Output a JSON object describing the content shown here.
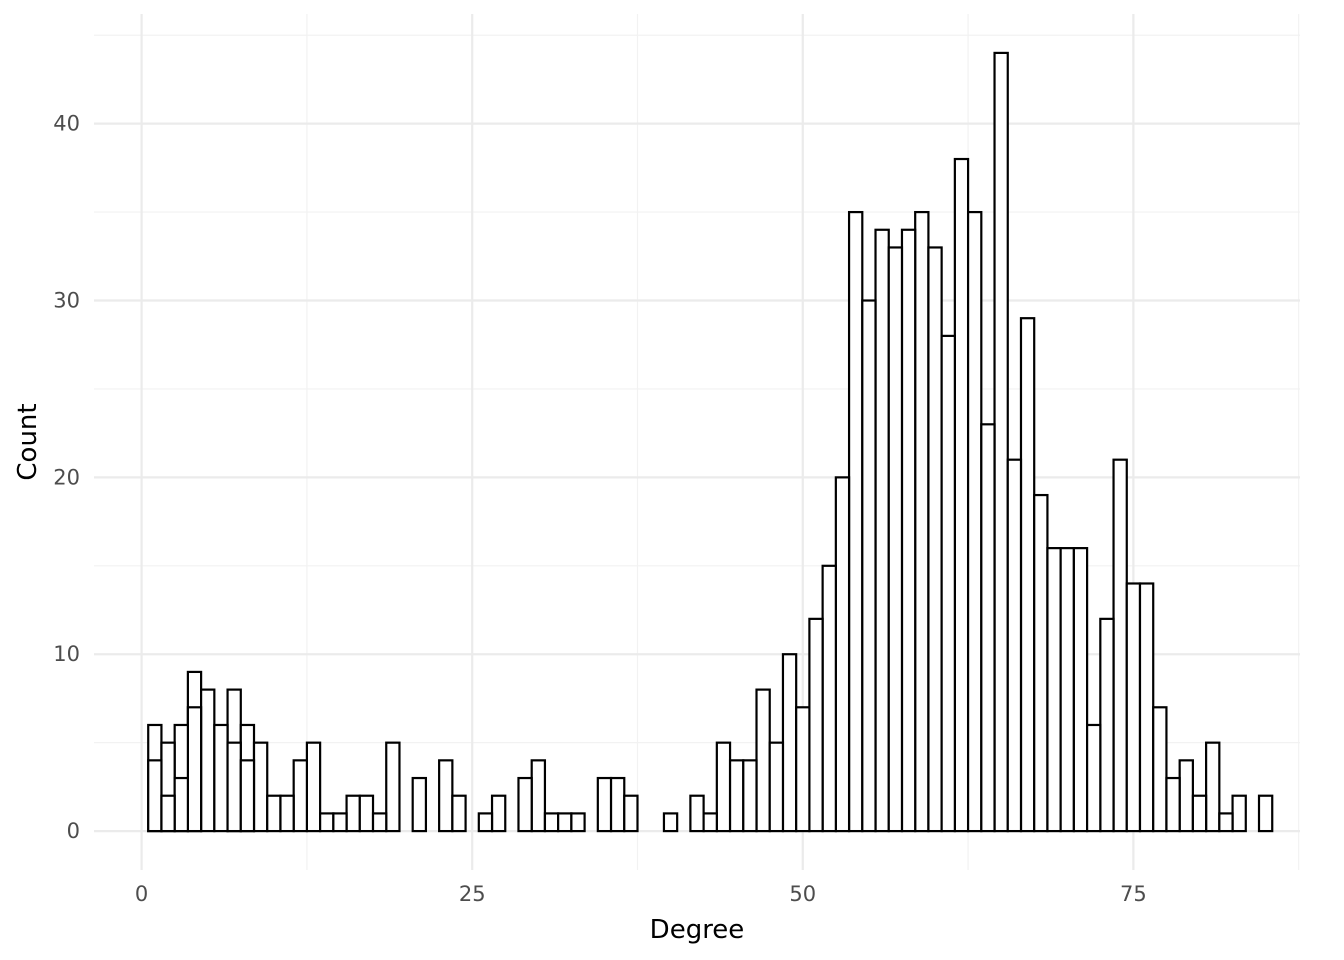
{
  "chart_data": {
    "type": "bar",
    "xlabel": "Degree",
    "ylabel": "Count",
    "xlim": [
      -3.6,
      87.6
    ],
    "ylim": [
      -2.2,
      46.2
    ],
    "x_ticks": [
      0,
      25,
      50,
      75
    ],
    "y_ticks": [
      0,
      10,
      20,
      30,
      40
    ],
    "x_minor_ticks": [
      12.5,
      37.5,
      62.5,
      87.5
    ],
    "y_minor_ticks": [
      5,
      15,
      25,
      35,
      45
    ],
    "grid": true,
    "bin_width": 1,
    "x": [
      1,
      1,
      2,
      2,
      3,
      3,
      4,
      4,
      5,
      6,
      7,
      7,
      8,
      8,
      9,
      10,
      11,
      12,
      13,
      14,
      15,
      16,
      17,
      18,
      19,
      21,
      23,
      24,
      26,
      27,
      29,
      30,
      31,
      32,
      33,
      35,
      36,
      37,
      40,
      42,
      43,
      44,
      45,
      46,
      47,
      48,
      49,
      50,
      51,
      52,
      53,
      54,
      55,
      56,
      57,
      58,
      59,
      60,
      61,
      62,
      63,
      64,
      65,
      66,
      67,
      68,
      69,
      70,
      71,
      72,
      73,
      74,
      75,
      76,
      77,
      78,
      79,
      80,
      81,
      82,
      83,
      85
    ],
    "values": [
      6,
      4,
      5,
      2,
      6,
      3,
      9,
      7,
      8,
      6,
      8,
      5,
      6,
      4,
      5,
      2,
      2,
      4,
      5,
      1,
      1,
      2,
      2,
      1,
      5,
      3,
      4,
      2,
      1,
      2,
      3,
      4,
      1,
      1,
      1,
      3,
      3,
      2,
      1,
      2,
      1,
      5,
      4,
      4,
      8,
      5,
      10,
      7,
      12,
      15,
      20,
      35,
      30,
      34,
      33,
      34,
      35,
      33,
      28,
      38,
      35,
      23,
      44,
      21,
      29,
      19,
      16,
      16,
      16,
      6,
      12,
      21,
      14,
      14,
      7,
      3,
      4,
      2,
      5,
      1,
      2,
      2
    ]
  }
}
